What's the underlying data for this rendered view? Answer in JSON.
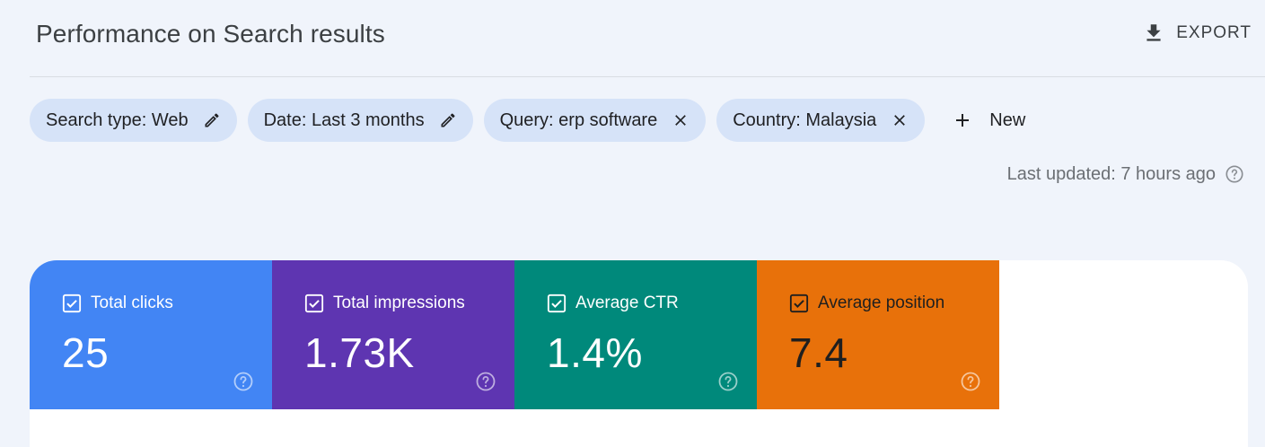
{
  "header": {
    "title": "Performance on Search results",
    "export_icon": "download-icon",
    "export_label": "EXPORT"
  },
  "filters": [
    {
      "label": "Search type: Web",
      "icon": "edit-icon"
    },
    {
      "label": "Date: Last 3 months",
      "icon": "edit-icon"
    },
    {
      "label": "Query: erp software",
      "icon": "close-icon"
    },
    {
      "label": "Country: Malaysia",
      "icon": "close-icon"
    }
  ],
  "new_filter": {
    "icon": "plus-icon",
    "label": "New"
  },
  "status": {
    "last_updated": "Last updated: 7 hours ago",
    "icon": "help-icon"
  },
  "metrics": [
    {
      "label": "Total clicks",
      "value": "25",
      "checked": true,
      "color": "#4285f4"
    },
    {
      "label": "Total impressions",
      "value": "1.73K",
      "checked": true,
      "color": "#5e35b1"
    },
    {
      "label": "Average CTR",
      "value": "1.4%",
      "checked": true,
      "color": "#00897b"
    },
    {
      "label": "Average position",
      "value": "7.4",
      "checked": true,
      "color": "#e8710a"
    }
  ]
}
